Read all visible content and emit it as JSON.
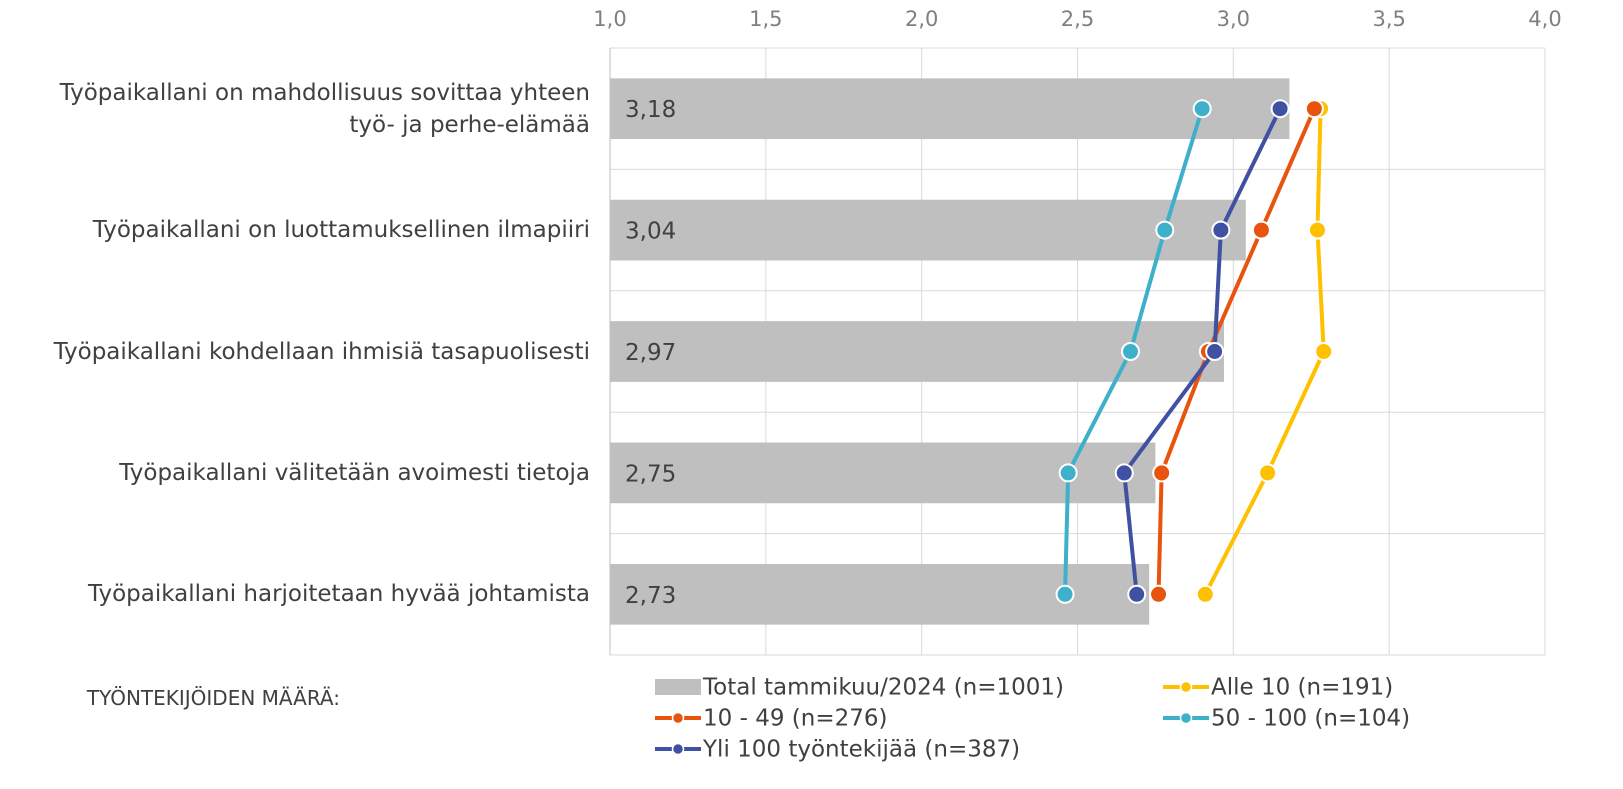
{
  "chart_data": {
    "type": "bar",
    "orientation": "horizontal",
    "categories": [
      "Työpaikallani on mahdollisuus sovittaa yhteen työ- ja perhe-elämää",
      "Työpaikallani on luottamuksellinen ilmapiiri",
      "Työpaikallani kohdellaan ihmisiä tasapuolisesti",
      "Työpaikallani välitetään avoimesti tietoja",
      "Työpaikallani harjoitetaan hyvää johtamista"
    ],
    "series": [
      {
        "name": "Total tammikuu/2024 (n=1001)",
        "type": "bar",
        "color": "#bfbfbf",
        "values": [
          3.18,
          3.04,
          2.97,
          2.75,
          2.73
        ],
        "value_labels": [
          "3,18",
          "3,04",
          "2,97",
          "2,75",
          "2,73"
        ]
      },
      {
        "name": "Alle 10 (n=191)",
        "type": "line",
        "color": "#ffc000",
        "values": [
          3.28,
          3.27,
          3.29,
          3.11,
          2.91
        ]
      },
      {
        "name": "10 - 49 (n=276)",
        "type": "line",
        "color": "#e8530e",
        "values": [
          3.26,
          3.09,
          2.92,
          2.77,
          2.76
        ]
      },
      {
        "name": "50 - 100 (n=104)",
        "type": "line",
        "color": "#3eb0c9",
        "values": [
          2.9,
          2.78,
          2.67,
          2.47,
          2.46
        ]
      },
      {
        "name": "Yli 100 työntekijää (n=387)",
        "type": "line",
        "color": "#4051a3",
        "values": [
          3.15,
          2.96,
          2.94,
          2.65,
          2.69
        ]
      }
    ],
    "legend_title": "TYÖNTEKIJÖIDEN MÄÄRÄ:",
    "xlim": [
      1.0,
      4.0
    ],
    "xticks": [
      {
        "value": 1.0,
        "label": "1,0"
      },
      {
        "value": 1.5,
        "label": "1,5"
      },
      {
        "value": 2.0,
        "label": "2,0"
      },
      {
        "value": 2.5,
        "label": "2,5"
      },
      {
        "value": 3.0,
        "label": "3,0"
      },
      {
        "value": 3.5,
        "label": "3,5"
      },
      {
        "value": 4.0,
        "label": "4,0"
      }
    ],
    "grid": true,
    "legend": "bottom"
  }
}
